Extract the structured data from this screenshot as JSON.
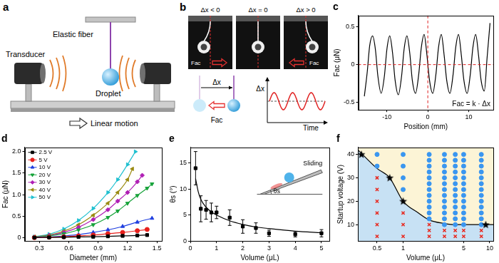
{
  "diagrams": {
    "a": {
      "label": "a",
      "elastic_fiber": "Elastic fiber",
      "transducer": "Transducer",
      "droplet": "Droplet",
      "motion": "Linear motion"
    },
    "b": {
      "label": "b",
      "frames": [
        "Δx < 0",
        "Δx = 0",
        "Δx > 0"
      ],
      "force": "Fac",
      "displacement": "Δx",
      "time": "Time"
    }
  },
  "chart_data": [
    {
      "type": "line",
      "title": "c",
      "x_label": "Position (mm)",
      "y_label": "Fac (μN)",
      "color": "#000000",
      "x": [
        -15.5,
        -14.8,
        -14.2,
        -13.5,
        -12.8,
        -12.2,
        -11.4,
        -10.6,
        -10.0,
        -9.3,
        -8.6,
        -8.0,
        -7.2,
        -6.4,
        -5.8,
        -5.1,
        -4.4,
        -3.8,
        -3.0,
        -2.2,
        -1.6,
        -0.9,
        -0.2,
        0.4,
        1.2,
        2.0,
        2.6,
        3.3,
        4.0,
        4.6,
        5.4,
        6.2,
        6.8,
        7.5,
        8.2,
        8.8,
        9.6,
        10.4,
        11.0,
        11.7,
        12.4,
        13.0,
        13.8,
        14.5,
        15.2
      ],
      "values": [
        -0.42,
        -0.1,
        0.25,
        0.38,
        0.2,
        -0.15,
        -0.38,
        -0.15,
        0.2,
        0.38,
        0.15,
        -0.2,
        -0.4,
        -0.15,
        0.2,
        0.38,
        0.15,
        -0.2,
        -0.38,
        -0.12,
        0.22,
        0.4,
        0.12,
        -0.2,
        -0.38,
        -0.12,
        0.22,
        0.4,
        0.12,
        -0.2,
        -0.38,
        -0.12,
        0.22,
        0.4,
        0.12,
        -0.2,
        -0.38,
        -0.12,
        0.22,
        0.4,
        0.12,
        -0.2,
        -0.35,
        0.1,
        0.55
      ],
      "xlim": [
        -17,
        16
      ],
      "ylim": [
        -0.6,
        0.65
      ],
      "xticks": [
        -10,
        0,
        10
      ],
      "yticks": [
        -0.5,
        0,
        0.5
      ],
      "grid": false,
      "reference_lines": {
        "x": 0,
        "y": 0,
        "color": "#e02020",
        "line_style": "dashed"
      },
      "annotation": "Fac = k · Δx"
    },
    {
      "type": "line",
      "title": "d",
      "x_label": "Diameter (mm)",
      "y_label": "Fac (μN)",
      "xlim": [
        0.15,
        1.55
      ],
      "ylim": [
        -0.08,
        2.1
      ],
      "xticks": [
        0.3,
        0.6,
        0.9,
        1.2,
        1.5
      ],
      "yticks": [
        0,
        0.5,
        {
          "value": 1,
          "label": "1.0"
        },
        1.5,
        {
          "value": 2,
          "label": "2.0"
        }
      ],
      "grid": false,
      "legend": "upper left",
      "series": [
        {
          "name": "2.5 V",
          "color": "#000000",
          "marker": "square",
          "x": [
            0.25,
            0.4,
            0.55,
            0.7,
            0.85,
            1.0,
            1.15,
            1.3,
            1.4
          ],
          "values": [
            0,
            0.005,
            0.01,
            0.015,
            0.02,
            0.03,
            0.04,
            0.05,
            0.06
          ]
        },
        {
          "name": "5 V",
          "color": "#e8201c",
          "marker": "circle",
          "x": [
            0.25,
            0.4,
            0.55,
            0.7,
            0.85,
            1.0,
            1.15,
            1.3,
            1.4
          ],
          "values": [
            0,
            0.01,
            0.02,
            0.04,
            0.06,
            0.09,
            0.12,
            0.16,
            0.19
          ]
        },
        {
          "name": "10 V",
          "color": "#1f3fe0",
          "marker": "triangle",
          "x": [
            0.25,
            0.4,
            0.55,
            0.7,
            0.85,
            1.0,
            1.15,
            1.3,
            1.45
          ],
          "values": [
            0.005,
            0.015,
            0.04,
            0.07,
            0.12,
            0.18,
            0.26,
            0.36,
            0.45
          ]
        },
        {
          "name": "20 V",
          "color": "#17a33a",
          "marker": "triangle_down",
          "x": [
            0.25,
            0.4,
            0.55,
            0.7,
            0.85,
            1.0,
            1.1,
            1.2,
            1.3,
            1.4,
            1.45
          ],
          "values": [
            0.01,
            0.04,
            0.09,
            0.18,
            0.3,
            0.47,
            0.62,
            0.8,
            0.98,
            1.15,
            1.25
          ]
        },
        {
          "name": "30 V",
          "color": "#b01fb5",
          "marker": "diamond",
          "x": [
            0.25,
            0.4,
            0.55,
            0.7,
            0.85,
            1.0,
            1.1,
            1.2,
            1.3,
            1.35
          ],
          "values": [
            0.01,
            0.05,
            0.12,
            0.24,
            0.42,
            0.65,
            0.85,
            1.05,
            1.3,
            1.45
          ]
        },
        {
          "name": "40 V",
          "color": "#9a8a10",
          "marker": "triangle_left",
          "x": [
            0.25,
            0.4,
            0.55,
            0.7,
            0.85,
            1.0,
            1.1,
            1.2,
            1.25
          ],
          "values": [
            0.02,
            0.06,
            0.15,
            0.3,
            0.52,
            0.8,
            1.05,
            1.35,
            1.6
          ]
        },
        {
          "name": "50 V",
          "color": "#1fc0d0",
          "marker": "triangle_right",
          "x": [
            0.25,
            0.4,
            0.55,
            0.7,
            0.85,
            1.0,
            1.1,
            1.2,
            1.28
          ],
          "values": [
            0.02,
            0.08,
            0.2,
            0.4,
            0.68,
            1.05,
            1.35,
            1.7,
            2.0
          ]
        }
      ]
    },
    {
      "type": "scatter",
      "title": "e",
      "x_label": "Volume (μL)",
      "y_label": "θs (°)",
      "color": "#000000",
      "marker": "square",
      "x": [
        0.2,
        0.4,
        0.6,
        0.8,
        1,
        1.5,
        2,
        2.5,
        3,
        4,
        5
      ],
      "values": [
        14,
        6.2,
        6,
        5.5,
        5.5,
        4.5,
        2.8,
        2.5,
        1.5,
        1.3,
        1.5
      ],
      "errors": [
        3.2,
        2.5,
        1.8,
        1.8,
        1.2,
        1.5,
        1.3,
        1,
        0.6,
        0.5,
        0.7
      ],
      "fit": {
        "x": [
          0.2,
          0.3,
          0.4,
          0.6,
          0.8,
          1,
          1.5,
          2,
          2.5,
          3,
          4,
          5
        ],
        "values": [
          12,
          9.5,
          8,
          6.5,
          5.6,
          5,
          3.9,
          3.2,
          2.7,
          2.4,
          1.9,
          1.6
        ]
      },
      "xlim": [
        0,
        5.3
      ],
      "ylim": [
        0,
        18
      ],
      "xticks": [
        0,
        1,
        2,
        3,
        4,
        5
      ],
      "yticks": [
        0,
        5,
        10,
        15
      ],
      "grid": false,
      "inset": {
        "angle": "θs",
        "motion": "Sliding"
      }
    },
    {
      "type": "scatter",
      "title": "f",
      "x_label": "Volume (μL)",
      "y_label": "Startup voltage (V)",
      "log": "x",
      "xlim": [
        0.3,
        11
      ],
      "ylim": [
        3,
        43
      ],
      "xticks": [
        0.5,
        1,
        5,
        10
      ],
      "yticks": [
        10,
        20,
        30,
        40
      ],
      "grid": false,
      "series": [
        {
          "type": "line",
          "color": "#000000",
          "x": [
            0.3,
            0.5,
            0.7,
            1,
            1.5,
            2,
            3,
            4,
            6,
            9,
            11
          ],
          "values": [
            42,
            34,
            30,
            20,
            15,
            12,
            10.5,
            10,
            10,
            10,
            10
          ]
        },
        {
          "marker": "star",
          "color": "#000000",
          "x": [
            0.33,
            0.7,
            1,
            9
          ],
          "values": [
            40,
            30,
            20,
            10
          ]
        },
        {
          "marker": "circle",
          "color": "#3a96f0",
          "x": [
            0.5,
            0.5,
            1,
            1,
            1,
            1,
            2,
            2,
            2,
            2,
            2,
            2,
            2,
            2,
            2,
            2,
            2,
            2,
            3,
            3,
            3,
            3,
            3,
            3,
            3,
            3,
            3,
            3,
            3,
            3,
            3,
            4,
            4,
            4,
            4,
            4,
            4,
            4,
            4,
            4,
            4,
            4,
            4,
            4,
            5,
            5,
            5,
            5,
            5,
            5,
            5,
            5,
            5,
            5,
            5,
            5,
            5,
            8,
            8,
            8,
            8,
            8,
            8,
            8,
            8,
            8,
            8,
            8,
            8,
            8
          ],
          "values": [
            35,
            40,
            25,
            30,
            35,
            40,
            12.5,
            15,
            17.5,
            20,
            22.5,
            25,
            27.5,
            30,
            32.5,
            35,
            37.5,
            40,
            10,
            12.5,
            15,
            17.5,
            20,
            22.5,
            25,
            27.5,
            30,
            32.5,
            35,
            37.5,
            40,
            10,
            12.5,
            15,
            17.5,
            20,
            22.5,
            25,
            27.5,
            30,
            32.5,
            35,
            37.5,
            40,
            10,
            12.5,
            15,
            17.5,
            20,
            22.5,
            25,
            27.5,
            30,
            32.5,
            35,
            37.5,
            40,
            10,
            12.5,
            15,
            17.5,
            20,
            22.5,
            25,
            27.5,
            30,
            32.5,
            35,
            37.5,
            40
          ]
        },
        {
          "marker": "cross",
          "color": "#e8281e",
          "x": [
            0.5,
            0.5,
            0.5,
            0.5,
            0.5,
            0.5,
            1,
            1,
            1,
            2,
            2,
            2,
            3,
            3,
            4,
            4,
            5,
            5,
            8,
            8
          ],
          "values": [
            5,
            10,
            15,
            20,
            25,
            30,
            5,
            10,
            15,
            5,
            7.5,
            10,
            5,
            7.5,
            5,
            7.5,
            5,
            7.5,
            5,
            7.5
          ]
        }
      ]
    }
  ]
}
